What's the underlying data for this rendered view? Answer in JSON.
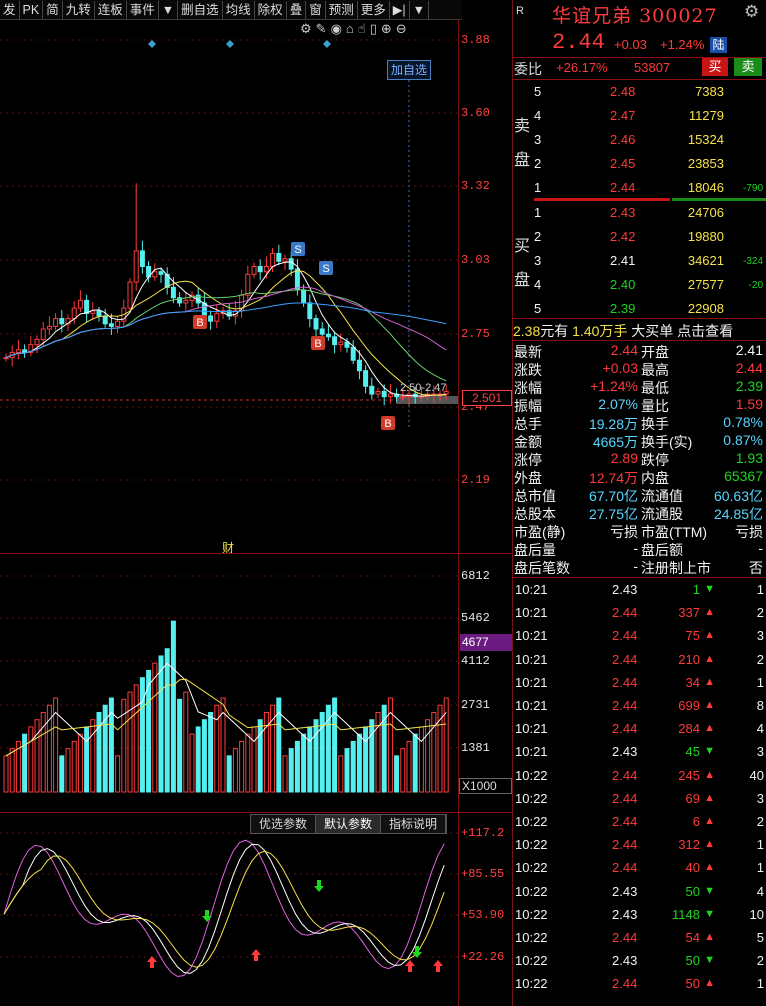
{
  "toolbar": {
    "items": [
      "发",
      "PK",
      "简",
      "九转",
      "连板",
      "事件",
      "▼",
      "删自选",
      "均线",
      "除权",
      "叠",
      "窗",
      "预测",
      "更多",
      "▶|",
      "▼"
    ]
  },
  "chart": {
    "price_ticks": [
      "3.88",
      "3.60",
      "3.32",
      "3.03",
      "2.75",
      "2.47",
      "2.19"
    ],
    "current_price_box": "2.501",
    "add_watch_label": "加自选",
    "range_label": "2.50-2.47",
    "cai_label": "财",
    "signal_labels": {
      "buy": "B",
      "sell": "S"
    },
    "volume_ticks": [
      "6812",
      "5462",
      "4112",
      "2731",
      "1381"
    ],
    "volume_current": "4677",
    "volume_unit": "X1000",
    "indicator_ticks": [
      "+117.2",
      "+85.55",
      "+53.90",
      "+22.26"
    ],
    "indicator_tabs": [
      "优选参数",
      "默认参数",
      "指标说明"
    ],
    "colors": {
      "up": "#ff3a3a",
      "down": "#54f0f0",
      "ma5": "#ffffff",
      "ma10": "#f4e24a",
      "ma20": "#6ad06a",
      "ma60": "#3aa0ff",
      "ma_extra": "#d060d0"
    }
  },
  "quote": {
    "r_label": "R",
    "name": "华谊兄弟",
    "code": "300027",
    "price": "2.44",
    "change": "+0.03",
    "change_pct": "+1.24%",
    "market_tag": "陆",
    "gear_icon": "gear-icon"
  },
  "orderbook": {
    "weibi_label": "委比",
    "weibi_value": "+26.17%",
    "weicha_value": "53807",
    "buy_btn": "买",
    "sell_btn": "卖",
    "sell_side_label": [
      "卖",
      "盘"
    ],
    "buy_side_label": [
      "买",
      "盘"
    ],
    "asks": [
      {
        "level": "5",
        "price": "2.48",
        "vol": "7383",
        "delta": ""
      },
      {
        "level": "4",
        "price": "2.47",
        "vol": "11279",
        "delta": ""
      },
      {
        "level": "3",
        "price": "2.46",
        "vol": "15324",
        "delta": ""
      },
      {
        "level": "2",
        "price": "2.45",
        "vol": "23853",
        "delta": ""
      },
      {
        "level": "1",
        "price": "2.44",
        "vol": "18046",
        "delta": "-790"
      }
    ],
    "bids": [
      {
        "level": "1",
        "price": "2.43",
        "vol": "24706",
        "delta": ""
      },
      {
        "level": "2",
        "price": "2.42",
        "vol": "19880",
        "delta": ""
      },
      {
        "level": "3",
        "price": "2.41",
        "vol": "34621",
        "delta": "-324"
      },
      {
        "level": "4",
        "price": "2.40",
        "vol": "27577",
        "delta": "-20"
      },
      {
        "level": "5",
        "price": "2.39",
        "vol": "22908",
        "delta": ""
      }
    ]
  },
  "bigorder": {
    "price": "2.38",
    "unit": "元有",
    "amount": "1.40万手",
    "type": "大买单",
    "action": "点击查看"
  },
  "stats": [
    {
      "l": "最新",
      "v": "2.44",
      "vc": "red",
      "l2": "开盘",
      "v2": "2.41",
      "v2c": "white"
    },
    {
      "l": "涨跌",
      "v": "+0.03",
      "vc": "red",
      "l2": "最高",
      "v2": "2.44",
      "v2c": "red"
    },
    {
      "l": "涨幅",
      "v": "+1.24%",
      "vc": "red",
      "l2": "最低",
      "v2": "2.39",
      "v2c": "green"
    },
    {
      "l": "振幅",
      "v": "2.07%",
      "vc": "cyan",
      "l2": "量比",
      "v2": "1.59",
      "v2c": "red"
    },
    {
      "l": "总手",
      "v": "19.28万",
      "vc": "cyan",
      "l2": "换手",
      "v2": "0.78%",
      "v2c": "cyan"
    },
    {
      "l": "金额",
      "v": "4665万",
      "vc": "cyan",
      "l2": "换手(实)",
      "v2": "0.87%",
      "v2c": "cyan"
    },
    {
      "l": "涨停",
      "v": "2.89",
      "vc": "red",
      "l2": "跌停",
      "v2": "1.93",
      "v2c": "green"
    },
    {
      "l": "外盘",
      "v": "12.74万",
      "vc": "red",
      "l2": "内盘",
      "v2": "65367",
      "v2c": "green"
    },
    {
      "l": "总市值",
      "v": "67.70亿",
      "vc": "cyan",
      "l2": "流通值",
      "v2": "60.63亿",
      "v2c": "cyan"
    },
    {
      "l": "总股本",
      "v": "27.75亿",
      "vc": "cyan",
      "l2": "流通股",
      "v2": "24.85亿",
      "v2c": "cyan"
    },
    {
      "l": "市盈(静)",
      "v": "亏损",
      "vc": "white",
      "l2": "市盈(TTM)",
      "v2": "亏损",
      "v2c": "white"
    },
    {
      "l": "盘后量",
      "v": "-",
      "vc": "white",
      "l2": "盘后额",
      "v2": "-",
      "v2c": "white"
    },
    {
      "l": "盘后笔数",
      "v": "-",
      "vc": "white",
      "l2": "注册制上市",
      "v2": "否",
      "v2c": "white"
    }
  ],
  "ticks": [
    {
      "t": "10:21",
      "p": "2.43",
      "v": "1",
      "d": "down",
      "n": "1"
    },
    {
      "t": "10:21",
      "p": "2.44",
      "v": "337",
      "d": "up",
      "n": "2"
    },
    {
      "t": "10:21",
      "p": "2.44",
      "v": "75",
      "d": "up",
      "n": "3"
    },
    {
      "t": "10:21",
      "p": "2.44",
      "v": "210",
      "d": "up",
      "n": "2"
    },
    {
      "t": "10:21",
      "p": "2.44",
      "v": "34",
      "d": "up",
      "n": "1"
    },
    {
      "t": "10:21",
      "p": "2.44",
      "v": "699",
      "d": "up",
      "n": "8"
    },
    {
      "t": "10:21",
      "p": "2.44",
      "v": "284",
      "d": "up",
      "n": "4"
    },
    {
      "t": "10:21",
      "p": "2.43",
      "v": "45",
      "d": "down",
      "n": "3"
    },
    {
      "t": "10:22",
      "p": "2.44",
      "v": "245",
      "d": "up",
      "n": "40"
    },
    {
      "t": "10:22",
      "p": "2.44",
      "v": "69",
      "d": "up",
      "n": "3"
    },
    {
      "t": "10:22",
      "p": "2.44",
      "v": "6",
      "d": "up",
      "n": "2"
    },
    {
      "t": "10:22",
      "p": "2.44",
      "v": "312",
      "d": "up",
      "n": "1"
    },
    {
      "t": "10:22",
      "p": "2.44",
      "v": "40",
      "d": "up",
      "n": "1"
    },
    {
      "t": "10:22",
      "p": "2.43",
      "v": "50",
      "d": "down",
      "n": "4"
    },
    {
      "t": "10:22",
      "p": "2.43",
      "v": "1148",
      "d": "down",
      "n": "10"
    },
    {
      "t": "10:22",
      "p": "2.44",
      "v": "54",
      "d": "up",
      "n": "5"
    },
    {
      "t": "10:22",
      "p": "2.43",
      "v": "50",
      "d": "down",
      "n": "2"
    },
    {
      "t": "10:22",
      "p": "2.44",
      "v": "50",
      "d": "up",
      "n": "1"
    }
  ]
}
